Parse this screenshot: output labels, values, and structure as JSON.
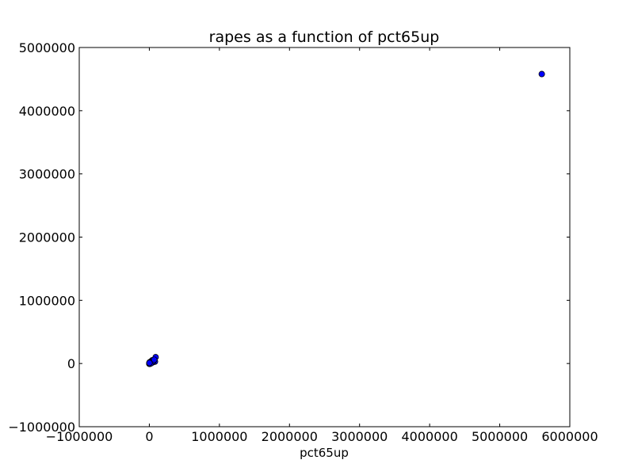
{
  "chart_data": {
    "type": "scatter",
    "title": "rapes as a function of pct65up",
    "xlabel": "pct65up",
    "ylabel": "",
    "xlim": [
      -1000000,
      6000000
    ],
    "ylim": [
      -1000000,
      5000000
    ],
    "xticks": [
      -1000000,
      0,
      1000000,
      2000000,
      3000000,
      4000000,
      5000000,
      6000000
    ],
    "xtick_labels": [
      "−1000000",
      "0",
      "1000000",
      "2000000",
      "3000000",
      "4000000",
      "5000000",
      "6000000"
    ],
    "yticks": [
      -1000000,
      0,
      1000000,
      2000000,
      3000000,
      4000000,
      5000000
    ],
    "ytick_labels": [
      "−1000000",
      "0",
      "1000000",
      "2000000",
      "3000000",
      "4000000",
      "5000000"
    ],
    "grid": false,
    "marker_color": "#0000ff",
    "series": [
      {
        "x": [
          5600000,
          90000,
          80000,
          50000,
          40000,
          30000,
          20000,
          15000,
          10000,
          5000,
          3000,
          1000,
          0,
          0,
          8000,
          12000,
          25000,
          60000,
          70000,
          2000
        ],
        "y": [
          4580000,
          100000,
          30000,
          20000,
          50000,
          10000,
          30000,
          0,
          10000,
          20000,
          0,
          5000,
          0,
          -5000,
          -5000,
          15000,
          5000,
          40000,
          60000,
          10000
        ]
      }
    ]
  }
}
